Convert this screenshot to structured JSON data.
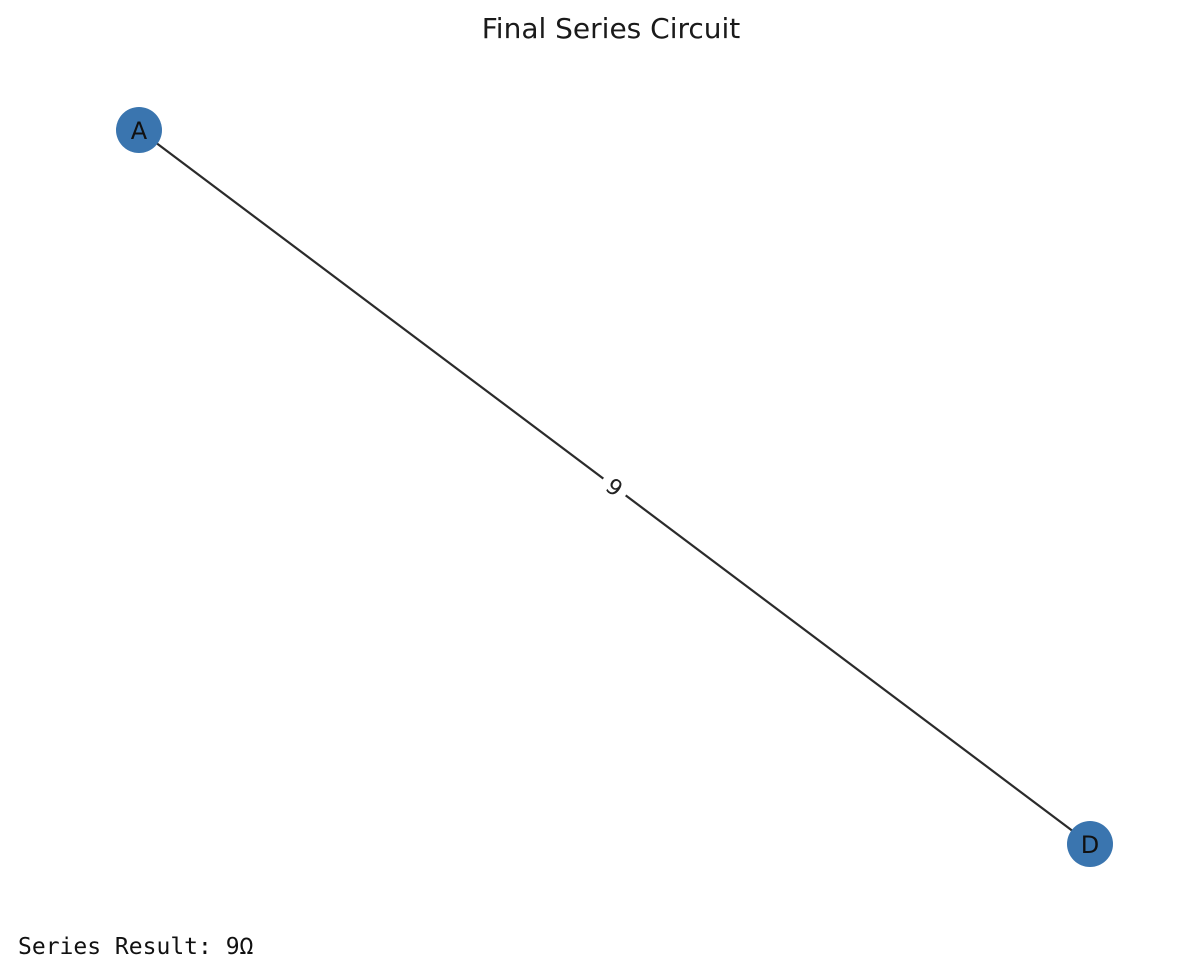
{
  "figure": {
    "title": "Final Series Circuit"
  },
  "graph": {
    "node_color": "#3a75af",
    "edge_color": "#2b2b2b",
    "nodes": [
      {
        "id": "A",
        "label": "A"
      },
      {
        "id": "D",
        "label": "D"
      }
    ],
    "edges": [
      {
        "from": "A",
        "to": "D",
        "label": "9"
      }
    ]
  },
  "output": {
    "text": "Series Result: 9Ω"
  }
}
